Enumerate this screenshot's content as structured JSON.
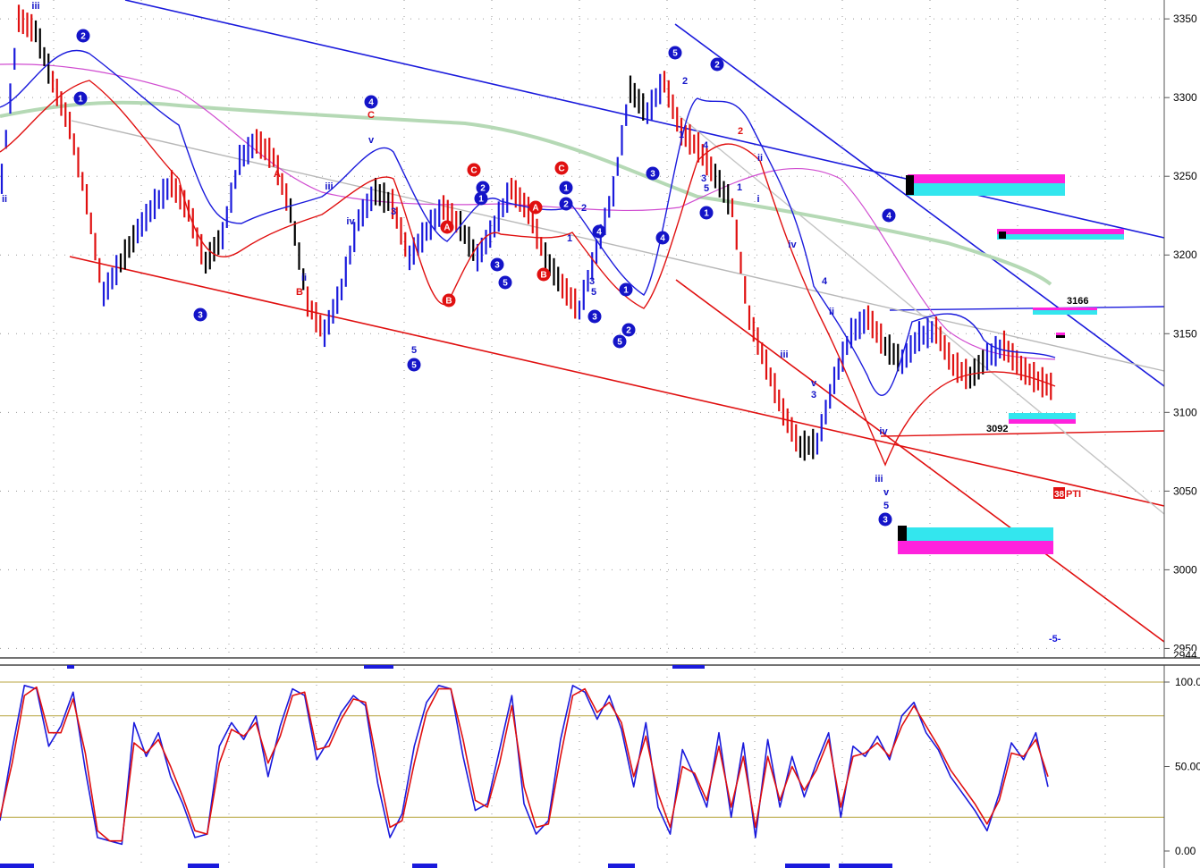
{
  "chart_data": [
    {
      "type": "line",
      "panel": "price",
      "ylim": [
        2944,
        3362
      ],
      "y_ticks": [
        3350,
        3300,
        3250,
        3200,
        3150,
        3100,
        3050,
        3000,
        2950
      ],
      "y_tick_labels": [
        "3350",
        "3300",
        "3250",
        "3200",
        "3150",
        "3100",
        "3050",
        "3000",
        "2950"
      ],
      "price_tag": "2944",
      "grid": true,
      "colors": {
        "up": "#1a1adc",
        "down": "#e01010",
        "neutral": "#000000",
        "ma_slow": "#b5d9b5",
        "ma_mid": "#d04cd0",
        "band_cyan": "#33e6ee",
        "band_magenta": "#ff22dd"
      },
      "series": [
        {
          "values": [
            3248,
            3350,
            3342,
            3310,
            3282,
            3235,
            3175,
            3195,
            3215,
            3232,
            3245,
            3228,
            3195,
            3212,
            3260,
            3272,
            3262,
            3228,
            3170,
            3150,
            3178,
            3222,
            3240,
            3232,
            3198,
            3215,
            3230,
            3218,
            3198,
            3218,
            3242,
            3228,
            3198,
            3180,
            3165,
            3202,
            3240,
            3305,
            3290,
            3310,
            3278,
            3268,
            3250,
            3230,
            3160,
            3130,
            3100,
            3078,
            3080,
            3120,
            3150,
            3160,
            3142,
            3132,
            3148,
            3152,
            3130,
            3122,
            3135,
            3142,
            3128,
            3120,
            3115
          ]
        }
      ],
      "annotations": {
        "values": [
          "3166",
          "3092",
          "38",
          "PTI",
          "-5-"
        ],
        "blue_wave_labels": [
          "1",
          "2",
          "3",
          "4",
          "5",
          "i",
          "ii",
          "iii",
          "iv",
          "v"
        ],
        "red_wave_labels": [
          "A",
          "B",
          "C"
        ]
      }
    },
    {
      "type": "line",
      "panel": "oscillator",
      "ylim": [
        0,
        100
      ],
      "y_ticks": [
        100,
        50,
        0
      ],
      "y_tick_labels": [
        "100.00",
        "50.00",
        "0.00"
      ],
      "ref_lines": [
        100,
        80,
        20
      ],
      "series": [
        {
          "color": "#1a1adc",
          "values": [
            18,
            60,
            98,
            96,
            62,
            74,
            94,
            48,
            8,
            6,
            4,
            76,
            56,
            70,
            44,
            28,
            8,
            10,
            62,
            76,
            66,
            80,
            44,
            74,
            96,
            92,
            54,
            66,
            82,
            92,
            86,
            40,
            8,
            22,
            62,
            88,
            98,
            96,
            56,
            24,
            28,
            60,
            92,
            28,
            10,
            18,
            66,
            98,
            94,
            78,
            92,
            72,
            38,
            76,
            26,
            10,
            60,
            44,
            26,
            70,
            20,
            64,
            8,
            66,
            26,
            56,
            32,
            52,
            70,
            20,
            62,
            56,
            68,
            54,
            80,
            88,
            70,
            60,
            44,
            34,
            24,
            12,
            34,
            64,
            54,
            70,
            38
          ]
        },
        {
          "color": "#e01010",
          "values": [
            20,
            52,
            92,
            97,
            70,
            70,
            90,
            58,
            12,
            6,
            6,
            64,
            58,
            66,
            50,
            32,
            12,
            10,
            52,
            72,
            68,
            76,
            52,
            68,
            92,
            94,
            60,
            62,
            78,
            90,
            88,
            50,
            14,
            18,
            52,
            82,
            96,
            96,
            66,
            30,
            26,
            52,
            86,
            38,
            14,
            16,
            56,
            92,
            96,
            82,
            88,
            76,
            44,
            68,
            34,
            14,
            50,
            46,
            30,
            62,
            26,
            56,
            14,
            56,
            30,
            50,
            36,
            48,
            66,
            26,
            56,
            58,
            64,
            56,
            74,
            86,
            74,
            62,
            48,
            38,
            28,
            16,
            30,
            58,
            56,
            66,
            44
          ]
        }
      ]
    }
  ]
}
